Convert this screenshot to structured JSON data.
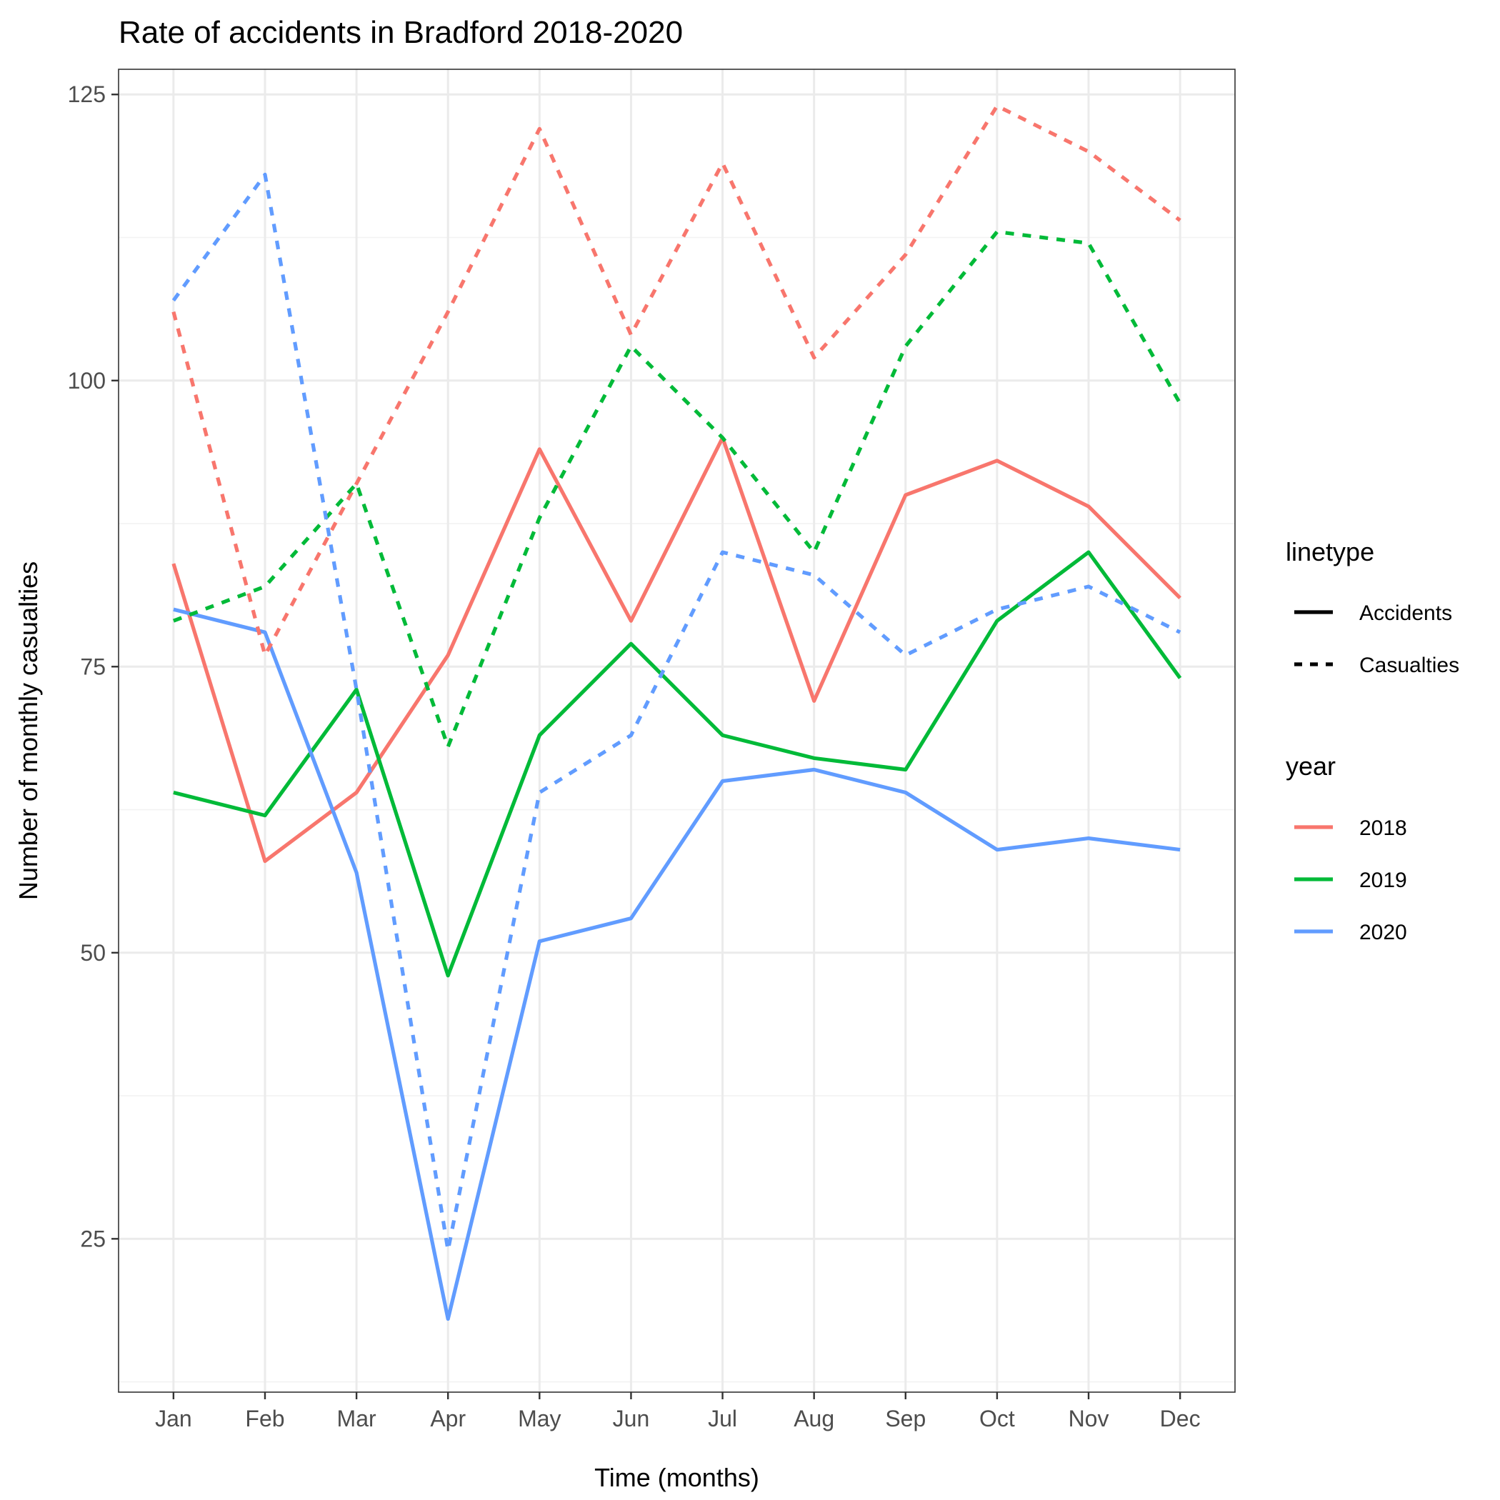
{
  "chart_data": {
    "type": "line",
    "title": "Rate of accidents in Bradford 2018-2020",
    "xlabel": "Time (months)",
    "ylabel": "Number of monthly casualties",
    "categories": [
      "Jan",
      "Feb",
      "Mar",
      "Apr",
      "May",
      "Jun",
      "Jul",
      "Aug",
      "Sep",
      "Oct",
      "Nov",
      "Dec"
    ],
    "ylim": [
      11.6,
      127.2
    ],
    "yticks": [
      25,
      50,
      75,
      100,
      125
    ],
    "grid": true,
    "legend_position": "right",
    "legend": {
      "linetype_title": "linetype",
      "linetype_items": [
        {
          "label": "Accidents",
          "dash": "solid"
        },
        {
          "label": "Casualties",
          "dash": "dashed"
        }
      ],
      "year_title": "year",
      "year_items": [
        {
          "label": "2018",
          "color": "#F8766D"
        },
        {
          "label": "2019",
          "color": "#00BA38"
        },
        {
          "label": "2020",
          "color": "#619CFF"
        }
      ]
    },
    "series": [
      {
        "year": "2018",
        "linetype": "Accidents",
        "color": "#F8766D",
        "dash": "solid",
        "values": [
          84,
          58,
          64,
          76,
          94,
          79,
          95,
          72,
          90,
          93,
          89,
          81
        ]
      },
      {
        "year": "2019",
        "linetype": "Accidents",
        "color": "#00BA38",
        "dash": "solid",
        "values": [
          64,
          62,
          73,
          48,
          69,
          77,
          69,
          67,
          66,
          79,
          85,
          74
        ]
      },
      {
        "year": "2020",
        "linetype": "Accidents",
        "color": "#619CFF",
        "dash": "solid",
        "values": [
          80,
          78,
          57,
          18,
          51,
          53,
          65,
          66,
          64,
          59,
          60,
          59
        ]
      },
      {
        "year": "2018",
        "linetype": "Casualties",
        "color": "#F8766D",
        "dash": "dashed",
        "values": [
          106,
          76,
          91,
          106,
          122,
          104,
          119,
          102,
          111,
          124,
          120,
          114
        ]
      },
      {
        "year": "2019",
        "linetype": "Casualties",
        "color": "#00BA38",
        "dash": "dashed",
        "values": [
          79,
          82,
          91,
          68,
          88,
          103,
          95,
          85,
          103,
          113,
          112,
          98
        ]
      },
      {
        "year": "2020",
        "linetype": "Casualties",
        "color": "#619CFF",
        "dash": "dashed",
        "values": [
          107,
          118,
          73,
          24,
          64,
          69,
          85,
          83,
          76,
          80,
          82,
          78
        ]
      }
    ]
  }
}
